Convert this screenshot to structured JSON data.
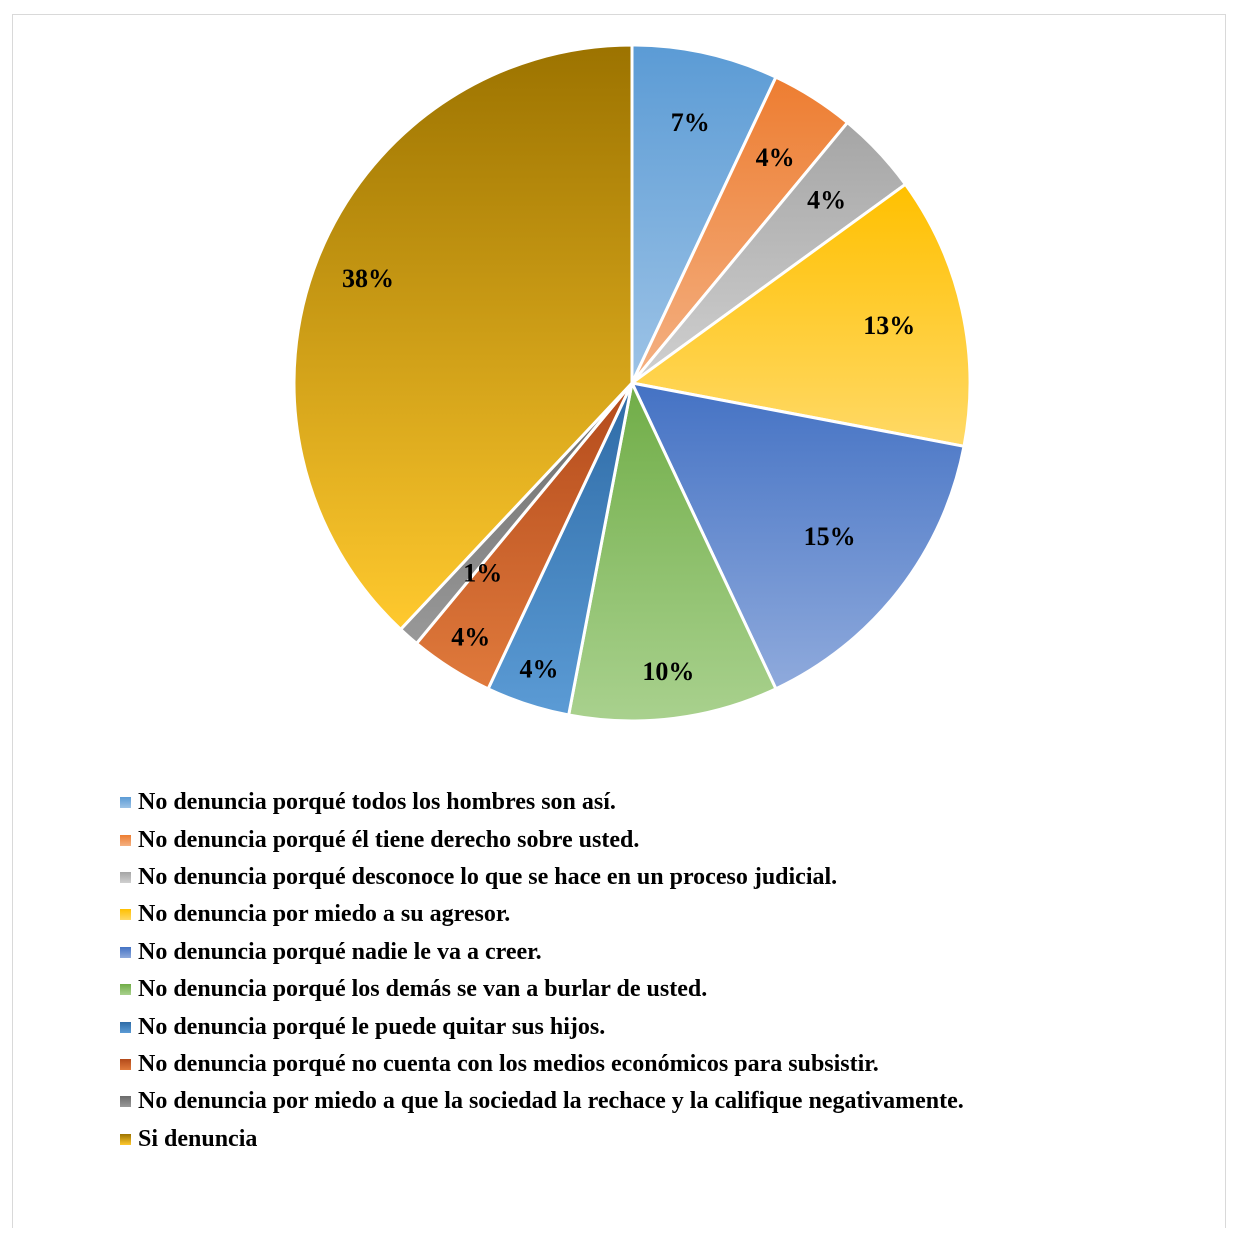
{
  "chart_data": {
    "type": "pie",
    "categories": [
      "No denuncia porqué todos los hombres son así.",
      "No denuncia porqué él tiene derecho sobre usted.",
      "No denuncia porqué desconoce lo que se hace en un proceso judicial.",
      "No denuncia por miedo a su agresor.",
      "No denuncia porqué nadie le va a creer.",
      "No denuncia porqué los demás se van a burlar de usted.",
      "No denuncia porqué le puede quitar sus hijos.",
      "No denuncia porqué no cuenta con los medios económicos para subsistir.",
      "No denuncia por miedo a que la sociedad la rechace y la califique negativamente.",
      "Si denuncia"
    ],
    "values": [
      7,
      4,
      4,
      13,
      15,
      10,
      4,
      4,
      1,
      38
    ],
    "labels": [
      "7%",
      "4%",
      "4%",
      "13%",
      "15%",
      "10%",
      "4%",
      "4%",
      "1%",
      "38%"
    ],
    "colors": [
      [
        "#9dc3e6",
        "#5b9bd5"
      ],
      [
        "#f4b183",
        "#ed7d31"
      ],
      [
        "#d0d0d0",
        "#a5a5a5"
      ],
      [
        "#ffd966",
        "#ffc000"
      ],
      [
        "#8faadc",
        "#4472c4"
      ],
      [
        "#a9d18e",
        "#70ad47"
      ],
      [
        "#5b9bd5",
        "#2e6ba6"
      ],
      [
        "#e07a3c",
        "#b34a1b"
      ],
      [
        "#999999",
        "#6b6b6b"
      ],
      [
        "#ffc92e",
        "#9c7300"
      ]
    ],
    "legend_position": "bottom"
  }
}
